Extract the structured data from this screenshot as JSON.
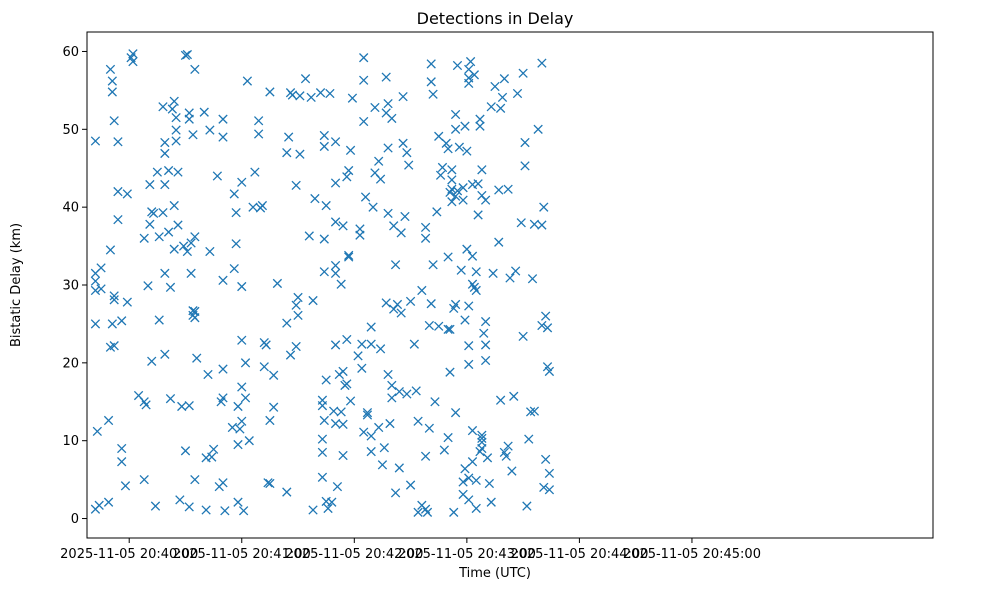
{
  "chart_data": {
    "type": "scatter",
    "title": "Detections in Delay",
    "xlabel": "Time (UTC)",
    "ylabel": "Bistatic Delay (km)",
    "marker": "x",
    "color": "#1f77b4",
    "x_unit": "seconds after 2025-11-05 20:40:00",
    "xlim": [
      -22.5,
      428.5
    ],
    "ylim": [
      -2.5,
      62.5
    ],
    "x_ticks": [
      {
        "value": 0,
        "label": "2025-11-05 20:40:00"
      },
      {
        "value": 60,
        "label": "2025-11-05 20:41:00"
      },
      {
        "value": 120,
        "label": "2025-11-05 20:42:00"
      },
      {
        "value": 180,
        "label": "2025-11-05 20:43:00"
      },
      {
        "value": 240,
        "label": "2025-11-05 20:44:00"
      },
      {
        "value": 300,
        "label": "2025-11-05 20:45:00"
      }
    ],
    "y_ticks": [
      {
        "value": 0,
        "label": "0"
      },
      {
        "value": 10,
        "label": "10"
      },
      {
        "value": 20,
        "label": "20"
      },
      {
        "value": 30,
        "label": "30"
      },
      {
        "value": 40,
        "label": "40"
      },
      {
        "value": 50,
        "label": "50"
      },
      {
        "value": 60,
        "label": "60"
      }
    ],
    "points": [
      [
        -18,
        48.5
      ],
      [
        -18,
        31.5
      ],
      [
        -18,
        30.5
      ],
      [
        -18,
        29.3
      ],
      [
        -18,
        25
      ],
      [
        -18,
        1.2
      ],
      [
        -17,
        11.2
      ],
      [
        -16,
        1.7
      ],
      [
        -15,
        32.2
      ],
      [
        -15,
        29.5
      ],
      [
        -11,
        12.6
      ],
      [
        -11,
        2.1
      ],
      [
        -10,
        57.7
      ],
      [
        -10,
        34.5
      ],
      [
        -10,
        22
      ],
      [
        -9,
        54.8
      ],
      [
        -9,
        56.2
      ],
      [
        -9,
        25
      ],
      [
        -8,
        51.1
      ],
      [
        -8,
        28.6
      ],
      [
        -8,
        28.1
      ],
      [
        -8,
        22.2
      ],
      [
        -6,
        42
      ],
      [
        -6,
        48.4
      ],
      [
        -6,
        38.4
      ],
      [
        -4,
        7.3
      ],
      [
        -4,
        9
      ],
      [
        -4,
        25.4
      ],
      [
        -2,
        4.2
      ],
      [
        -1,
        41.7
      ],
      [
        -1,
        27.8
      ],
      [
        1,
        59.2
      ],
      [
        2,
        59.7
      ],
      [
        2,
        58.7
      ],
      [
        5,
        15.8
      ],
      [
        8,
        36
      ],
      [
        8,
        5
      ],
      [
        8,
        15
      ],
      [
        9,
        14.6
      ],
      [
        10,
        29.9
      ],
      [
        11,
        37.8
      ],
      [
        11,
        42.9
      ],
      [
        12,
        39.4
      ],
      [
        12,
        20.2
      ],
      [
        13,
        39.2
      ],
      [
        15,
        44.5
      ],
      [
        16,
        36.2
      ],
      [
        16,
        25.5
      ],
      [
        14,
        1.6
      ],
      [
        18,
        52.9
      ],
      [
        18,
        39.3
      ],
      [
        19,
        48.3
      ],
      [
        19,
        46.9
      ],
      [
        19,
        42.9
      ],
      [
        19,
        21.1
      ],
      [
        19,
        31.5
      ],
      [
        21,
        44.7
      ],
      [
        21,
        36.8
      ],
      [
        22,
        29.7
      ],
      [
        22,
        15.4
      ],
      [
        23,
        52.6
      ],
      [
        24,
        53.6
      ],
      [
        24,
        40.2
      ],
      [
        24,
        34.6
      ],
      [
        25,
        51.5
      ],
      [
        25,
        48.5
      ],
      [
        25,
        49.9
      ],
      [
        26,
        37.7
      ],
      [
        26,
        44.5
      ],
      [
        27,
        2.4
      ],
      [
        28,
        14.4
      ],
      [
        29,
        35
      ],
      [
        30,
        59.5
      ],
      [
        30,
        8.7
      ],
      [
        31,
        34.3
      ],
      [
        31,
        59.6
      ],
      [
        32,
        1.5
      ],
      [
        32,
        52.1
      ],
      [
        32,
        51.3
      ],
      [
        32,
        14.5
      ],
      [
        33,
        35.4
      ],
      [
        33,
        31.5
      ],
      [
        34,
        49.3
      ],
      [
        34,
        26.7
      ],
      [
        34,
        26.1
      ],
      [
        35,
        25.8
      ],
      [
        35,
        26.6
      ],
      [
        35,
        57.7
      ],
      [
        35,
        36.2
      ],
      [
        36,
        20.6
      ],
      [
        35,
        5
      ],
      [
        40,
        52.2
      ],
      [
        41,
        1.1
      ],
      [
        41,
        7.8
      ],
      [
        42,
        18.5
      ],
      [
        43,
        34.3
      ],
      [
        43,
        49.9
      ],
      [
        44,
        7.9
      ],
      [
        45,
        8.9
      ],
      [
        47,
        44
      ],
      [
        48,
        4.1
      ],
      [
        49,
        15
      ],
      [
        50,
        4.6
      ],
      [
        50,
        15.5
      ],
      [
        50,
        19.2
      ],
      [
        50,
        30.6
      ],
      [
        50,
        51.3
      ],
      [
        50,
        49
      ],
      [
        51,
        1
      ],
      [
        55,
        11.7
      ],
      [
        56,
        41.7
      ],
      [
        56,
        32.1
      ],
      [
        57,
        35.3
      ],
      [
        57,
        39.3
      ],
      [
        58,
        2.1
      ],
      [
        58,
        9.5
      ],
      [
        58,
        14.4
      ],
      [
        59,
        11.5
      ],
      [
        60,
        12.5
      ],
      [
        60,
        16.9
      ],
      [
        60,
        29.8
      ],
      [
        60,
        22.9
      ],
      [
        60,
        43.2
      ],
      [
        61,
        1
      ],
      [
        62,
        15.5
      ],
      [
        62,
        20
      ],
      [
        63,
        56.2
      ],
      [
        64,
        10
      ],
      [
        66,
        40
      ],
      [
        67,
        44.5
      ],
      [
        69,
        51.1
      ],
      [
        69,
        49.4
      ],
      [
        70,
        39.9
      ],
      [
        71,
        40.2
      ],
      [
        72,
        19.5
      ],
      [
        72,
        22.6
      ],
      [
        73,
        22.3
      ],
      [
        74,
        4.6
      ],
      [
        75,
        4.5
      ],
      [
        75,
        12.6
      ],
      [
        75,
        54.8
      ],
      [
        77,
        18.4
      ],
      [
        77,
        14.3
      ],
      [
        79,
        30.2
      ],
      [
        84,
        25.1
      ],
      [
        84,
        3.4
      ],
      [
        84,
        47
      ],
      [
        85,
        49
      ],
      [
        86,
        21
      ],
      [
        86,
        54.7
      ],
      [
        87,
        54.4
      ],
      [
        89,
        42.8
      ],
      [
        89,
        27.4
      ],
      [
        89,
        22.1
      ],
      [
        90,
        28.4
      ],
      [
        90,
        26.1
      ],
      [
        91,
        46.8
      ],
      [
        91,
        54.3
      ],
      [
        94,
        56.5
      ],
      [
        96,
        36.3
      ],
      [
        97,
        54.1
      ],
      [
        98,
        1.1
      ],
      [
        98,
        28
      ],
      [
        99,
        41.1
      ],
      [
        102,
        54.7
      ],
      [
        103,
        14.5
      ],
      [
        103,
        15.2
      ],
      [
        103,
        10.2
      ],
      [
        103,
        8.5
      ],
      [
        104,
        31.7
      ],
      [
        104,
        47.8
      ],
      [
        104,
        49.2
      ],
      [
        104,
        35.9
      ],
      [
        103,
        5.3
      ],
      [
        104,
        12.6
      ],
      [
        105,
        40.2
      ],
      [
        105,
        2.2
      ],
      [
        105,
        17.8
      ],
      [
        106,
        1.3
      ],
      [
        107,
        54.6
      ],
      [
        108,
        2.1
      ],
      [
        109,
        13.8
      ],
      [
        110,
        22.3
      ],
      [
        110,
        43.1
      ],
      [
        110,
        32.5
      ],
      [
        110,
        38.1
      ],
      [
        110,
        31.5
      ],
      [
        110,
        48.4
      ],
      [
        110,
        12.2
      ],
      [
        111,
        4.1
      ],
      [
        112,
        18.5
      ],
      [
        113,
        30.1
      ],
      [
        113,
        13.7
      ],
      [
        114,
        8.1
      ],
      [
        114,
        12.1
      ],
      [
        114,
        18.9
      ],
      [
        114,
        37.6
      ],
      [
        115,
        17.1
      ],
      [
        116,
        23
      ],
      [
        116,
        17.3
      ],
      [
        116,
        43.9
      ],
      [
        117,
        44.7
      ],
      [
        117,
        33.8
      ],
      [
        117,
        33.6
      ],
      [
        118,
        47.3
      ],
      [
        118,
        15.1
      ],
      [
        119,
        54
      ],
      [
        122,
        20.9
      ],
      [
        123,
        36.4
      ],
      [
        123,
        37.2
      ],
      [
        124,
        22.4
      ],
      [
        124,
        19.3
      ],
      [
        125,
        11.1
      ],
      [
        125,
        56.3
      ],
      [
        125,
        59.2
      ],
      [
        125,
        51
      ],
      [
        126,
        41.3
      ],
      [
        127,
        13.3
      ],
      [
        127,
        13.6
      ],
      [
        129,
        24.6
      ],
      [
        129,
        22.4
      ],
      [
        129,
        10.6
      ],
      [
        129,
        8.6
      ],
      [
        130,
        40
      ],
      [
        131,
        52.8
      ],
      [
        131,
        44.4
      ],
      [
        133,
        11.7
      ],
      [
        133,
        45.9
      ],
      [
        134,
        43.6
      ],
      [
        134,
        21.8
      ],
      [
        135,
        6.9
      ],
      [
        136,
        9.1
      ],
      [
        137,
        56.7
      ],
      [
        137,
        52.1
      ],
      [
        137,
        27.7
      ],
      [
        138,
        53.3
      ],
      [
        138,
        47.6
      ],
      [
        138,
        39.2
      ],
      [
        138,
        18.5
      ],
      [
        139,
        12.2
      ],
      [
        140,
        51.4
      ],
      [
        140,
        17.1
      ],
      [
        140,
        15.5
      ],
      [
        141,
        26.9
      ],
      [
        141,
        37.6
      ],
      [
        142,
        3.3
      ],
      [
        142,
        32.6
      ],
      [
        143,
        27.5
      ],
      [
        144,
        6.5
      ],
      [
        144,
        16.3
      ],
      [
        145,
        36.7
      ],
      [
        145,
        26.4
      ],
      [
        146,
        54.2
      ],
      [
        146,
        48.2
      ],
      [
        147,
        38.8
      ],
      [
        148,
        16
      ],
      [
        148,
        47
      ],
      [
        149,
        45.4
      ],
      [
        150,
        4.3
      ],
      [
        150,
        27.9
      ],
      [
        152,
        22.4
      ],
      [
        153,
        16.4
      ],
      [
        154,
        0.8
      ],
      [
        154,
        12.5
      ],
      [
        156,
        29.3
      ],
      [
        156,
        1.7
      ],
      [
        158,
        37.4
      ],
      [
        158,
        36
      ],
      [
        158,
        8
      ],
      [
        158,
        1.2
      ],
      [
        159,
        0.8
      ],
      [
        160,
        11.6
      ],
      [
        160,
        24.8
      ],
      [
        161,
        27.6
      ],
      [
        161,
        56.1
      ],
      [
        161,
        58.4
      ],
      [
        162,
        54.5
      ],
      [
        162,
        32.6
      ],
      [
        163,
        15
      ],
      [
        164,
        39.4
      ],
      [
        165,
        24.7
      ],
      [
        165,
        49.1
      ],
      [
        166,
        44.1
      ],
      [
        167,
        45.1
      ],
      [
        168,
        8.8
      ],
      [
        169,
        48.2
      ],
      [
        170,
        47.5
      ],
      [
        170,
        10.4
      ],
      [
        170,
        24.3
      ],
      [
        170,
        33.6
      ],
      [
        171,
        41.9
      ],
      [
        171,
        24.3
      ],
      [
        171,
        18.8
      ],
      [
        172,
        42.3
      ],
      [
        172,
        40.7
      ],
      [
        172,
        44.8
      ],
      [
        172,
        43.5
      ],
      [
        173,
        0.8
      ],
      [
        173,
        27
      ],
      [
        174,
        51.9
      ],
      [
        174,
        50
      ],
      [
        174,
        41.4
      ],
      [
        174,
        27.5
      ],
      [
        174,
        13.6
      ],
      [
        175,
        58.2
      ],
      [
        175,
        42.1
      ],
      [
        176,
        47.7
      ],
      [
        177,
        31.9
      ],
      [
        178,
        42.5
      ],
      [
        178,
        40.9
      ],
      [
        178,
        4.7
      ],
      [
        178,
        3.1
      ],
      [
        179,
        50.4
      ],
      [
        179,
        25.5
      ],
      [
        179,
        6.4
      ],
      [
        180,
        34.6
      ],
      [
        180,
        47.2
      ],
      [
        181,
        57.7
      ],
      [
        181,
        55.9
      ],
      [
        181,
        56.6
      ],
      [
        181,
        27.3
      ],
      [
        181,
        19.8
      ],
      [
        181,
        22.2
      ],
      [
        181,
        2.4
      ],
      [
        181,
        5.2
      ],
      [
        182,
        58.7
      ],
      [
        183,
        42.9
      ],
      [
        183,
        30.1
      ],
      [
        183,
        33.7
      ],
      [
        183,
        11.3
      ],
      [
        183,
        7.3
      ],
      [
        184,
        57
      ],
      [
        184,
        29.7
      ],
      [
        185,
        29.3
      ],
      [
        185,
        31.7
      ],
      [
        185,
        4.9
      ],
      [
        185,
        1.3
      ],
      [
        186,
        39
      ],
      [
        186,
        43
      ],
      [
        187,
        50.4
      ],
      [
        187,
        8.6
      ],
      [
        187,
        51.3
      ],
      [
        188,
        41.5
      ],
      [
        188,
        44.8
      ],
      [
        188,
        10.7
      ],
      [
        188,
        10.3
      ],
      [
        188,
        9.8
      ],
      [
        188,
        9
      ],
      [
        189,
        23.8
      ],
      [
        190,
        40.9
      ],
      [
        190,
        25.3
      ],
      [
        190,
        20.3
      ],
      [
        190,
        22.3
      ],
      [
        191,
        7.8
      ],
      [
        192,
        4.5
      ],
      [
        193,
        2.1
      ],
      [
        193,
        52.9
      ],
      [
        194,
        31.5
      ],
      [
        195,
        55.5
      ],
      [
        197,
        42.2
      ],
      [
        197,
        35.5
      ],
      [
        198,
        52.7
      ],
      [
        198,
        15.2
      ],
      [
        199,
        54.1
      ],
      [
        200,
        56.5
      ],
      [
        200,
        8.5
      ],
      [
        201,
        8
      ],
      [
        202,
        9.3
      ],
      [
        202,
        42.3
      ],
      [
        203,
        30.9
      ],
      [
        204,
        6.1
      ],
      [
        205,
        15.7
      ],
      [
        206,
        31.8
      ],
      [
        207,
        54.6
      ],
      [
        209,
        38
      ],
      [
        210,
        23.4
      ],
      [
        210,
        57.2
      ],
      [
        211,
        48.3
      ],
      [
        211,
        45.3
      ],
      [
        212,
        1.6
      ],
      [
        213,
        10.2
      ],
      [
        214,
        13.7
      ],
      [
        215,
        30.8
      ],
      [
        216,
        13.8
      ],
      [
        216,
        37.8
      ],
      [
        218,
        50
      ],
      [
        220,
        24.8
      ],
      [
        220,
        58.5
      ],
      [
        220,
        37.7
      ],
      [
        221,
        4
      ],
      [
        221,
        40
      ],
      [
        222,
        26
      ],
      [
        222,
        7.6
      ],
      [
        223,
        19.5
      ],
      [
        223,
        24.5
      ],
      [
        224,
        18.9
      ],
      [
        224,
        5.8
      ],
      [
        224,
        3.7
      ]
    ]
  }
}
